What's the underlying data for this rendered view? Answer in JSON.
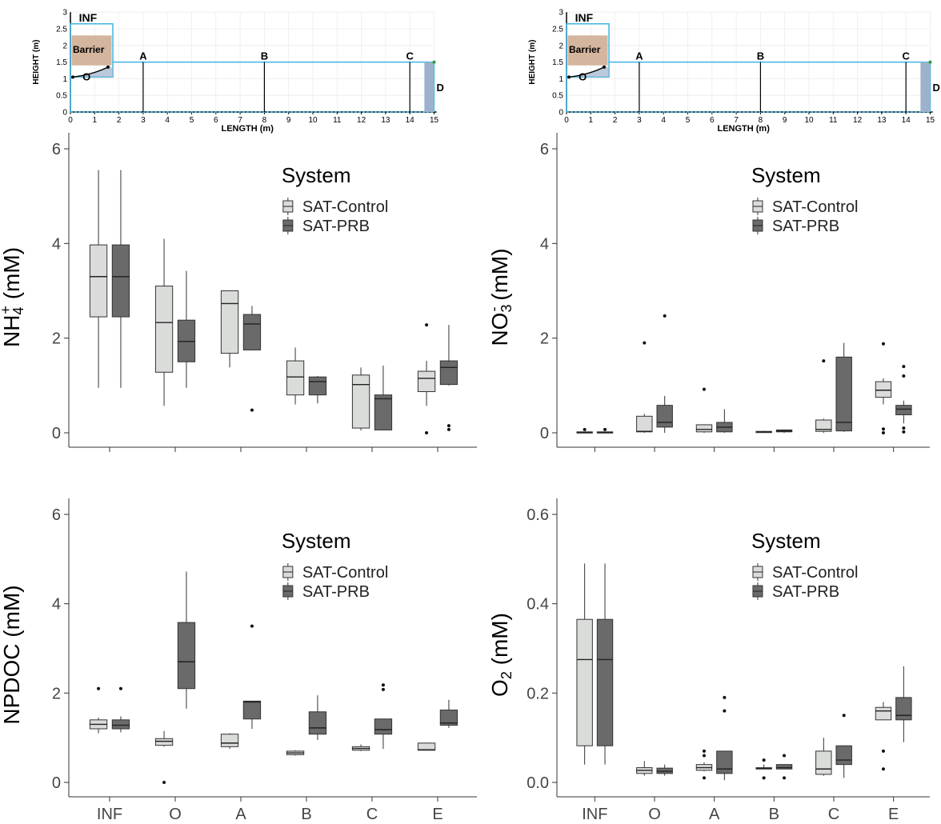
{
  "schematic": {
    "xlabel": "LENGTH (m)",
    "ylabel": "HEIGHT (m)",
    "xticks": [
      0,
      1,
      2,
      3,
      4,
      5,
      6,
      7,
      8,
      9,
      10,
      11,
      12,
      13,
      14,
      15
    ],
    "yticks": [
      "0",
      "0.5",
      "1",
      "1.5",
      "2",
      "2.5",
      "3"
    ],
    "labels": {
      "inf": "INF",
      "barrier": "Barrier",
      "o": "O",
      "a": "A",
      "b": "B",
      "c": "C",
      "d": "D"
    },
    "sampling_ports_m": {
      "A": 3,
      "B": 8,
      "C": 14
    },
    "colors": {
      "outline": "#3fb6e3",
      "barrier": "#d4b59e",
      "drain": "#9cb2cc"
    }
  },
  "chart_data": [
    {
      "type": "box",
      "ylabel_main": "NH",
      "ylabel_sub": "4",
      "ylabel_sup": "+",
      "ylabel_unit": " (mM)",
      "ylim": [
        0,
        6
      ],
      "yticks": [
        "0",
        "2",
        "4",
        "6"
      ],
      "categories": [
        "INF",
        "O",
        "A",
        "B",
        "C",
        "E"
      ],
      "show_xlabels": false,
      "legend": {
        "title": "System",
        "position": "top-right",
        "items": [
          "SAT-Control",
          "SAT-PRB"
        ]
      },
      "series": [
        {
          "name": "SAT-Control",
          "color": "#dadcda",
          "boxes": [
            {
              "min": 0.95,
              "q1": 2.45,
              "median": 3.3,
              "q3": 3.97,
              "max": 5.55,
              "outliers": []
            },
            {
              "min": 0.57,
              "q1": 1.28,
              "median": 2.33,
              "q3": 3.1,
              "max": 4.1,
              "outliers": []
            },
            {
              "min": 1.38,
              "q1": 1.68,
              "median": 2.73,
              "q3": 3.0,
              "max": 3.0,
              "outliers": []
            },
            {
              "min": 0.6,
              "q1": 0.8,
              "median": 1.18,
              "q3": 1.52,
              "max": 1.8,
              "outliers": []
            },
            {
              "min": 0.05,
              "q1": 0.1,
              "median": 1.02,
              "q3": 1.22,
              "max": 1.38,
              "outliers": []
            },
            {
              "min": 0.57,
              "q1": 0.87,
              "median": 1.15,
              "q3": 1.3,
              "max": 1.52,
              "outliers": [
                0.0,
                2.28
              ]
            }
          ]
        },
        {
          "name": "SAT-PRB",
          "color": "#6a6a6a",
          "boxes": [
            {
              "min": 0.95,
              "q1": 2.45,
              "median": 3.3,
              "q3": 3.97,
              "max": 5.55,
              "outliers": []
            },
            {
              "min": 0.95,
              "q1": 1.5,
              "median": 1.93,
              "q3": 2.38,
              "max": 3.42,
              "outliers": []
            },
            {
              "min": 1.75,
              "q1": 1.75,
              "median": 2.3,
              "q3": 2.5,
              "max": 2.68,
              "outliers": [
                0.48
              ]
            },
            {
              "min": 0.62,
              "q1": 0.8,
              "median": 1.08,
              "q3": 1.18,
              "max": 1.2,
              "outliers": []
            },
            {
              "min": 0.05,
              "q1": 0.06,
              "median": 0.72,
              "q3": 0.8,
              "max": 1.42,
              "outliers": []
            },
            {
              "min": 1.0,
              "q1": 1.02,
              "median": 1.38,
              "q3": 1.52,
              "max": 2.28,
              "outliers": [
                0.07,
                0.15
              ]
            }
          ]
        }
      ]
    },
    {
      "type": "box",
      "ylabel_main": "NO",
      "ylabel_sub": "3",
      "ylabel_sup": "-",
      "ylabel_unit": " (mM)",
      "ylim": [
        0,
        6
      ],
      "yticks": [
        "0",
        "2",
        "4",
        "6"
      ],
      "categories": [
        "INF",
        "O",
        "A",
        "B",
        "C",
        "E"
      ],
      "show_xlabels": false,
      "legend": {
        "title": "System",
        "position": "top-right",
        "items": [
          "SAT-Control",
          "SAT-PRB"
        ]
      },
      "series": [
        {
          "name": "SAT-Control",
          "color": "#dadcda",
          "boxes": [
            {
              "min": 0.0,
              "q1": 0.0,
              "median": 0.01,
              "q3": 0.02,
              "max": 0.02,
              "outliers": [
                0.07
              ]
            },
            {
              "min": 0.0,
              "q1": 0.02,
              "median": 0.03,
              "q3": 0.35,
              "max": 0.4,
              "outliers": [
                1.9
              ]
            },
            {
              "min": 0.0,
              "q1": 0.02,
              "median": 0.07,
              "q3": 0.17,
              "max": 0.18,
              "outliers": [
                0.92
              ]
            },
            {
              "min": 0.0,
              "q1": 0.01,
              "median": 0.02,
              "q3": 0.03,
              "max": 0.04,
              "outliers": []
            },
            {
              "min": 0.0,
              "q1": 0.03,
              "median": 0.07,
              "q3": 0.27,
              "max": 0.3,
              "outliers": [
                1.52
              ]
            },
            {
              "min": 0.6,
              "q1": 0.75,
              "median": 0.9,
              "q3": 1.08,
              "max": 1.15,
              "outliers": [
                0.0,
                0.08,
                1.88
              ]
            }
          ]
        },
        {
          "name": "SAT-PRB",
          "color": "#6a6a6a",
          "boxes": [
            {
              "min": 0.0,
              "q1": 0.0,
              "median": 0.01,
              "q3": 0.02,
              "max": 0.02,
              "outliers": [
                0.07
              ]
            },
            {
              "min": 0.0,
              "q1": 0.12,
              "median": 0.22,
              "q3": 0.58,
              "max": 0.78,
              "outliers": [
                2.47
              ]
            },
            {
              "min": 0.0,
              "q1": 0.02,
              "median": 0.12,
              "q3": 0.22,
              "max": 0.5,
              "outliers": []
            },
            {
              "min": 0.0,
              "q1": 0.02,
              "median": 0.04,
              "q3": 0.06,
              "max": 0.07,
              "outliers": []
            },
            {
              "min": 0.02,
              "q1": 0.04,
              "median": 0.22,
              "q3": 1.6,
              "max": 1.9,
              "outliers": []
            },
            {
              "min": 0.2,
              "q1": 0.38,
              "median": 0.5,
              "q3": 0.58,
              "max": 0.68,
              "outliers": [
                0.02,
                0.1,
                1.2,
                1.4
              ]
            }
          ]
        }
      ]
    },
    {
      "type": "box",
      "ylabel_main": "NPDOC",
      "ylabel_sub": "",
      "ylabel_sup": "",
      "ylabel_unit": " (mM)",
      "ylim": [
        0,
        6
      ],
      "yticks": [
        "0",
        "2",
        "4",
        "6"
      ],
      "categories": [
        "INF",
        "O",
        "A",
        "B",
        "C",
        "E"
      ],
      "show_xlabels": true,
      "legend": {
        "title": "System",
        "position": "top-right",
        "items": [
          "SAT-Control",
          "SAT-PRB"
        ]
      },
      "series": [
        {
          "name": "SAT-Control",
          "color": "#dadcda",
          "boxes": [
            {
              "min": 1.1,
              "q1": 1.2,
              "median": 1.3,
              "q3": 1.4,
              "max": 1.45,
              "outliers": [
                2.1
              ]
            },
            {
              "min": 0.8,
              "q1": 0.83,
              "median": 0.92,
              "q3": 0.98,
              "max": 1.15,
              "outliers": [
                0.0
              ]
            },
            {
              "min": 0.75,
              "q1": 0.8,
              "median": 0.88,
              "q3": 1.08,
              "max": 1.1,
              "outliers": []
            },
            {
              "min": 0.6,
              "q1": 0.62,
              "median": 0.66,
              "q3": 0.7,
              "max": 0.72,
              "outliers": []
            },
            {
              "min": 0.7,
              "q1": 0.72,
              "median": 0.76,
              "q3": 0.8,
              "max": 0.85,
              "outliers": []
            },
            {
              "min": 0.72,
              "q1": 0.72,
              "median": 0.73,
              "q3": 0.88,
              "max": 0.88,
              "outliers": []
            }
          ]
        },
        {
          "name": "SAT-PRB",
          "color": "#6a6a6a",
          "boxes": [
            {
              "min": 1.12,
              "q1": 1.2,
              "median": 1.28,
              "q3": 1.4,
              "max": 1.48,
              "outliers": [
                2.1
              ]
            },
            {
              "min": 1.65,
              "q1": 2.1,
              "median": 2.7,
              "q3": 3.58,
              "max": 4.72,
              "outliers": []
            },
            {
              "min": 1.2,
              "q1": 1.42,
              "median": 1.8,
              "q3": 1.82,
              "max": 1.82,
              "outliers": [
                3.5
              ]
            },
            {
              "min": 0.95,
              "q1": 1.08,
              "median": 1.22,
              "q3": 1.58,
              "max": 1.95,
              "outliers": []
            },
            {
              "min": 0.75,
              "q1": 1.08,
              "median": 1.18,
              "q3": 1.42,
              "max": 1.42,
              "outliers": [
                2.08,
                2.18
              ]
            },
            {
              "min": 1.22,
              "q1": 1.28,
              "median": 1.33,
              "q3": 1.62,
              "max": 1.85,
              "outliers": []
            }
          ]
        }
      ]
    },
    {
      "type": "box",
      "ylabel_main": "O",
      "ylabel_sub": "2",
      "ylabel_sup": "",
      "ylabel_unit": " (mM)",
      "ylim": [
        0,
        0.6
      ],
      "yticks": [
        "0.0",
        "0.2",
        "0.4",
        "0.6"
      ],
      "categories": [
        "INF",
        "O",
        "A",
        "B",
        "C",
        "E"
      ],
      "show_xlabels": true,
      "legend": {
        "title": "System",
        "position": "top-right",
        "items": [
          "SAT-Control",
          "SAT-PRB"
        ]
      },
      "series": [
        {
          "name": "SAT-Control",
          "color": "#dadcda",
          "boxes": [
            {
              "min": 0.04,
              "q1": 0.082,
              "median": 0.275,
              "q3": 0.365,
              "max": 0.49,
              "outliers": []
            },
            {
              "min": 0.015,
              "q1": 0.02,
              "median": 0.027,
              "q3": 0.033,
              "max": 0.048,
              "outliers": []
            },
            {
              "min": 0.025,
              "q1": 0.027,
              "median": 0.033,
              "q3": 0.04,
              "max": 0.045,
              "outliers": [
                0.01,
                0.06,
                0.07
              ]
            },
            {
              "min": 0.03,
              "q1": 0.03,
              "median": 0.031,
              "q3": 0.033,
              "max": 0.04,
              "outliers": [
                0.01,
                0.05
              ]
            },
            {
              "min": 0.015,
              "q1": 0.018,
              "median": 0.03,
              "q3": 0.07,
              "max": 0.1,
              "outliers": []
            },
            {
              "min": 0.14,
              "q1": 0.14,
              "median": 0.16,
              "q3": 0.168,
              "max": 0.18,
              "outliers": [
                0.03,
                0.07
              ]
            }
          ]
        },
        {
          "name": "SAT-PRB",
          "color": "#6a6a6a",
          "boxes": [
            {
              "min": 0.04,
              "q1": 0.082,
              "median": 0.275,
              "q3": 0.365,
              "max": 0.49,
              "outliers": []
            },
            {
              "min": 0.015,
              "q1": 0.02,
              "median": 0.025,
              "q3": 0.032,
              "max": 0.04,
              "outliers": []
            },
            {
              "min": 0.005,
              "q1": 0.02,
              "median": 0.03,
              "q3": 0.07,
              "max": 0.07,
              "outliers": [
                0.16,
                0.19
              ]
            },
            {
              "min": 0.03,
              "q1": 0.03,
              "median": 0.033,
              "q3": 0.04,
              "max": 0.04,
              "outliers": [
                0.01,
                0.06
              ]
            },
            {
              "min": 0.01,
              "q1": 0.04,
              "median": 0.05,
              "q3": 0.082,
              "max": 0.082,
              "outliers": [
                0.15
              ]
            },
            {
              "min": 0.09,
              "q1": 0.14,
              "median": 0.15,
              "q3": 0.19,
              "max": 0.26,
              "outliers": []
            }
          ]
        }
      ]
    }
  ]
}
